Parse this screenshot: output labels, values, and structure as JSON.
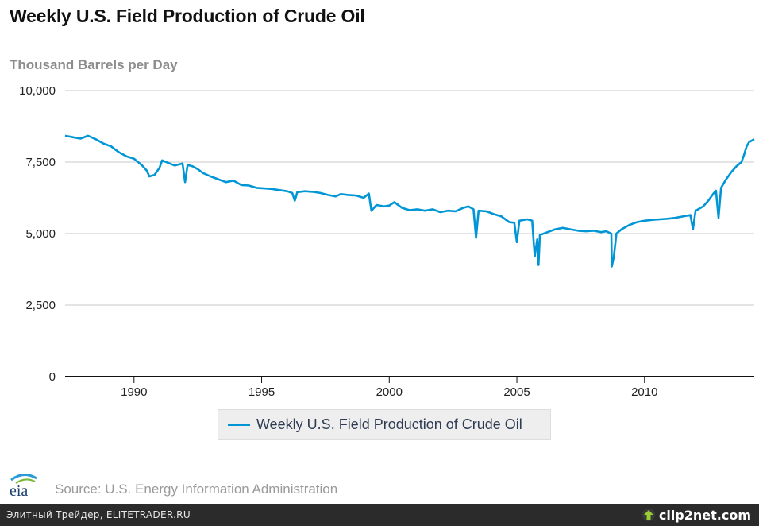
{
  "chart_data": {
    "type": "line",
    "title": "Weekly U.S. Field Production of Crude Oil",
    "ylabel": "Thousand Barrels per Day",
    "xlabel": "",
    "xlim": [
      1987.3,
      2014.3
    ],
    "ylim": [
      0,
      10000
    ],
    "yticks": [
      0,
      2500,
      5000,
      7500,
      10000
    ],
    "ytick_labels": [
      "0",
      "2,500",
      "5,000",
      "7,500",
      "10,000"
    ],
    "xticks": [
      1990,
      1995,
      2000,
      2005,
      2010
    ],
    "xtick_labels": [
      "1990",
      "1995",
      "2000",
      "2005",
      "2010"
    ],
    "grid": true,
    "legend": "bottom-center",
    "series": [
      {
        "name": "Weekly U.S. Field Production of Crude Oil",
        "color": "#0096d6",
        "points": [
          [
            1987.3,
            8420
          ],
          [
            1987.6,
            8370
          ],
          [
            1987.9,
            8320
          ],
          [
            1988.2,
            8420
          ],
          [
            1988.5,
            8300
          ],
          [
            1988.8,
            8150
          ],
          [
            1989.1,
            8050
          ],
          [
            1989.4,
            7850
          ],
          [
            1989.7,
            7700
          ],
          [
            1990.0,
            7620
          ],
          [
            1990.3,
            7400
          ],
          [
            1990.5,
            7200
          ],
          [
            1990.6,
            7000
          ],
          [
            1990.8,
            7050
          ],
          [
            1991.0,
            7300
          ],
          [
            1991.1,
            7560
          ],
          [
            1991.4,
            7450
          ],
          [
            1991.6,
            7380
          ],
          [
            1991.9,
            7450
          ],
          [
            1992.0,
            6800
          ],
          [
            1992.1,
            7400
          ],
          [
            1992.3,
            7350
          ],
          [
            1992.5,
            7250
          ],
          [
            1992.7,
            7120
          ],
          [
            1993.0,
            7000
          ],
          [
            1993.3,
            6900
          ],
          [
            1993.6,
            6800
          ],
          [
            1993.9,
            6850
          ],
          [
            1994.2,
            6700
          ],
          [
            1994.5,
            6680
          ],
          [
            1994.8,
            6600
          ],
          [
            1995.1,
            6580
          ],
          [
            1995.4,
            6560
          ],
          [
            1995.7,
            6520
          ],
          [
            1996.0,
            6480
          ],
          [
            1996.2,
            6420
          ],
          [
            1996.3,
            6150
          ],
          [
            1996.4,
            6450
          ],
          [
            1996.7,
            6480
          ],
          [
            1997.0,
            6460
          ],
          [
            1997.3,
            6420
          ],
          [
            1997.6,
            6350
          ],
          [
            1997.9,
            6300
          ],
          [
            1998.1,
            6380
          ],
          [
            1998.4,
            6350
          ],
          [
            1998.7,
            6330
          ],
          [
            1999.0,
            6250
          ],
          [
            1999.2,
            6400
          ],
          [
            1999.3,
            5800
          ],
          [
            1999.5,
            6000
          ],
          [
            1999.8,
            5950
          ],
          [
            2000.0,
            5980
          ],
          [
            2000.2,
            6100
          ],
          [
            2000.5,
            5900
          ],
          [
            2000.8,
            5820
          ],
          [
            2001.1,
            5850
          ],
          [
            2001.4,
            5800
          ],
          [
            2001.7,
            5850
          ],
          [
            2002.0,
            5750
          ],
          [
            2002.3,
            5800
          ],
          [
            2002.6,
            5780
          ],
          [
            2002.9,
            5900
          ],
          [
            2003.1,
            5950
          ],
          [
            2003.3,
            5850
          ],
          [
            2003.4,
            4850
          ],
          [
            2003.5,
            5800
          ],
          [
            2003.8,
            5780
          ],
          [
            2004.1,
            5680
          ],
          [
            2004.4,
            5600
          ],
          [
            2004.7,
            5400
          ],
          [
            2004.9,
            5380
          ],
          [
            2005.0,
            4700
          ],
          [
            2005.1,
            5450
          ],
          [
            2005.4,
            5500
          ],
          [
            2005.6,
            5450
          ],
          [
            2005.7,
            4200
          ],
          [
            2005.8,
            4800
          ],
          [
            2005.85,
            3900
          ],
          [
            2005.9,
            4950
          ],
          [
            2006.2,
            5050
          ],
          [
            2006.5,
            5150
          ],
          [
            2006.8,
            5200
          ],
          [
            2007.1,
            5150
          ],
          [
            2007.4,
            5100
          ],
          [
            2007.7,
            5080
          ],
          [
            2008.0,
            5100
          ],
          [
            2008.3,
            5050
          ],
          [
            2008.5,
            5080
          ],
          [
            2008.7,
            5000
          ],
          [
            2008.72,
            3850
          ],
          [
            2008.8,
            4200
          ],
          [
            2008.9,
            5000
          ],
          [
            2009.1,
            5150
          ],
          [
            2009.4,
            5300
          ],
          [
            2009.7,
            5400
          ],
          [
            2010.0,
            5450
          ],
          [
            2010.3,
            5480
          ],
          [
            2010.6,
            5500
          ],
          [
            2010.9,
            5520
          ],
          [
            2011.2,
            5550
          ],
          [
            2011.5,
            5600
          ],
          [
            2011.8,
            5650
          ],
          [
            2011.9,
            5150
          ],
          [
            2012.0,
            5800
          ],
          [
            2012.3,
            5950
          ],
          [
            2012.5,
            6150
          ],
          [
            2012.7,
            6400
          ],
          [
            2012.8,
            6500
          ],
          [
            2012.9,
            5550
          ],
          [
            2013.0,
            6600
          ],
          [
            2013.2,
            6900
          ],
          [
            2013.4,
            7150
          ],
          [
            2013.6,
            7350
          ],
          [
            2013.8,
            7500
          ],
          [
            2013.9,
            7750
          ],
          [
            2014.0,
            8050
          ],
          [
            2014.1,
            8200
          ],
          [
            2014.2,
            8250
          ],
          [
            2014.3,
            8300
          ]
        ]
      }
    ]
  },
  "source_text": "Source: U.S. Energy Information Administration",
  "eia_logo_text": "eia",
  "footer": {
    "caption": "Элитный Трейдер, ELITETRADER.RU",
    "brand": "clip2net.com"
  }
}
